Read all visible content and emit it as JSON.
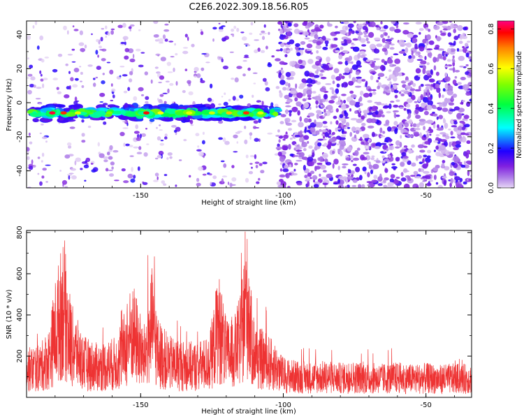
{
  "title": "C2E6.2022.309.18.56.R05",
  "chart_data": [
    {
      "type": "heatmap",
      "xlabel": "Height of straight line (km)",
      "ylabel": "Frequency (Hz)",
      "xlim": [
        -190,
        -34
      ],
      "ylim": [
        -50,
        48
      ],
      "xticks": [
        -150,
        -100,
        -50
      ],
      "yticks": [
        -40,
        -20,
        0,
        20,
        40
      ],
      "colorbar": {
        "label": "Normalized spectral amplitude",
        "range": [
          0,
          0.84
        ],
        "ticks": [
          "0.0",
          "0.2",
          "0.4",
          "0.6",
          "0.8"
        ],
        "colormap": [
          "#e6d6f5",
          "#b080e8",
          "#8020e0",
          "#2000ff",
          "#00ffff",
          "#00ff40",
          "#80ff00",
          "#ffff00",
          "#ff8000",
          "#ff0000",
          "#ff0080"
        ]
      },
      "features": {
        "signal_band": {
          "x_start": -188,
          "x_end": -102,
          "frequency_center": -6,
          "peak_amplitude": 0.84
        },
        "background_change_x": -102
      }
    },
    {
      "type": "line",
      "xlabel": "Height of straight line (km)",
      "ylabel": "SNR (10 * v/v)",
      "xlim": [
        -190,
        -34
      ],
      "ylim": [
        0,
        810
      ],
      "xticks": [
        -150,
        -100,
        -50
      ],
      "yticks": [
        200,
        400,
        600,
        800
      ],
      "color": "#ee3333",
      "series": [
        {
          "points": [
            [
              -190,
              160
            ],
            [
              -185,
              175
            ],
            [
              -182,
              230
            ],
            [
              -180,
              380
            ],
            [
              -178,
              480
            ],
            [
              -177,
              560
            ],
            [
              -176,
              420
            ],
            [
              -174,
              300
            ],
            [
              -170,
              200
            ],
            [
              -165,
              175
            ],
            [
              -162,
              185
            ],
            [
              -158,
              200
            ],
            [
              -155,
              300
            ],
            [
              -153,
              380
            ],
            [
              -151,
              320
            ],
            [
              -149,
              220
            ],
            [
              -147,
              360
            ],
            [
              -146,
              420
            ],
            [
              -145,
              360
            ],
            [
              -144,
              260
            ],
            [
              -140,
              200
            ],
            [
              -135,
              185
            ],
            [
              -130,
              180
            ],
            [
              -126,
              200
            ],
            [
              -124,
              320
            ],
            [
              -123,
              420
            ],
            [
              -122,
              380
            ],
            [
              -120,
              250
            ],
            [
              -117,
              270
            ],
            [
              -115,
              340
            ],
            [
              -114,
              440
            ],
            [
              -113,
              560
            ],
            [
              -112,
              480
            ],
            [
              -111,
              300
            ],
            [
              -109,
              230
            ],
            [
              -107,
              220
            ],
            [
              -105,
              200
            ],
            [
              -103,
              180
            ],
            [
              -100,
              130
            ],
            [
              -95,
              120
            ],
            [
              -90,
              115
            ],
            [
              -85,
              120
            ],
            [
              -80,
              112
            ],
            [
              -75,
              118
            ],
            [
              -70,
              112
            ],
            [
              -65,
              110
            ],
            [
              -60,
              115
            ],
            [
              -55,
              108
            ],
            [
              -50,
              112
            ],
            [
              -45,
              106
            ],
            [
              -40,
              110
            ],
            [
              -34,
              108
            ]
          ]
        }
      ]
    }
  ]
}
